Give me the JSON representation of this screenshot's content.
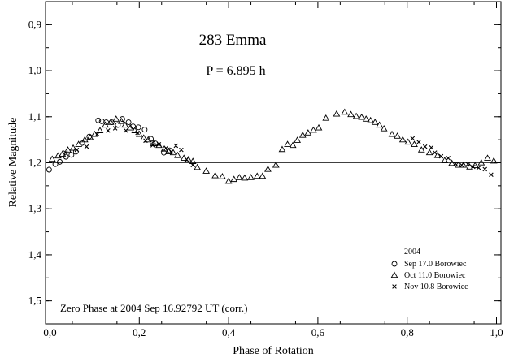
{
  "chart_data": {
    "type": "scatter",
    "title": "283 Emma",
    "subtitle": "P = 6.895 h",
    "xlabel": "Phase of Rotation",
    "ylabel": "Relative Magnitude",
    "xlim": [
      -0.01,
      1.01
    ],
    "ylim": [
      0.85,
      1.55
    ],
    "y_inverted": true,
    "x_ticks": [
      0.0,
      0.2,
      0.4,
      0.6,
      0.8,
      1.0
    ],
    "x_tick_labels": [
      "0,0",
      "0,2",
      "0,4",
      "0,6",
      "0,8",
      "1,0"
    ],
    "y_ticks": [
      0.9,
      1.0,
      1.1,
      1.2,
      1.3,
      1.4,
      1.5
    ],
    "y_tick_labels": [
      "0,9",
      "1,0",
      "1,1",
      "1,2",
      "1,3",
      "1,4",
      "1,5"
    ],
    "grid": false,
    "legend_position": "bottom-right",
    "legend_title": "2004",
    "annotation": "Zero Phase at 2004 Sep 16.92792 UT (corr.)",
    "reference_line_y": 1.2,
    "series": [
      {
        "name": "Sep 17.0 Borowiec",
        "marker": "circle",
        "x": [
          -0.002,
          0.012,
          0.022,
          0.036,
          0.048,
          0.058,
          0.072,
          0.088,
          0.108,
          0.116,
          0.126,
          0.138,
          0.152,
          0.162,
          0.176,
          0.186,
          0.198,
          0.212,
          0.226,
          0.236,
          0.255,
          0.268
        ],
        "y": [
          1.215,
          1.203,
          1.198,
          1.187,
          1.183,
          1.176,
          1.157,
          1.143,
          1.108,
          1.11,
          1.112,
          1.112,
          1.118,
          1.105,
          1.112,
          1.121,
          1.123,
          1.128,
          1.148,
          1.158,
          1.178,
          1.173
        ]
      },
      {
        "name": "Oct 11.0 Borowiec",
        "marker": "triangle",
        "x": [
          0.005,
          0.018,
          0.028,
          0.04,
          0.052,
          0.064,
          0.078,
          0.09,
          0.1,
          0.112,
          0.124,
          0.136,
          0.148,
          0.16,
          0.168,
          0.18,
          0.19,
          0.2,
          0.21,
          0.22,
          0.232,
          0.244,
          0.256,
          0.266,
          0.276,
          0.286,
          0.3,
          0.31,
          0.32,
          0.33,
          0.35,
          0.37,
          0.386,
          0.4,
          0.412,
          0.424,
          0.436,
          0.45,
          0.464,
          0.476,
          0.488,
          0.506,
          0.52,
          0.532,
          0.544,
          0.554,
          0.566,
          0.578,
          0.59,
          0.602,
          0.618,
          0.642,
          0.66,
          0.674,
          0.686,
          0.698,
          0.708,
          0.718,
          0.728,
          0.738,
          0.748,
          0.766,
          0.778,
          0.79,
          0.802,
          0.816,
          0.832,
          0.85,
          0.868,
          0.884,
          0.9,
          0.914,
          0.926,
          0.94,
          0.952,
          0.966,
          0.98,
          0.994
        ],
        "y": [
          1.192,
          1.185,
          1.181,
          1.172,
          1.168,
          1.16,
          1.15,
          1.145,
          1.138,
          1.13,
          1.118,
          1.112,
          1.105,
          1.11,
          1.118,
          1.124,
          1.13,
          1.138,
          1.146,
          1.15,
          1.158,
          1.162,
          1.17,
          1.176,
          1.178,
          1.184,
          1.19,
          1.193,
          1.197,
          1.21,
          1.218,
          1.228,
          1.23,
          1.24,
          1.236,
          1.232,
          1.233,
          1.232,
          1.229,
          1.229,
          1.214,
          1.205,
          1.171,
          1.16,
          1.162,
          1.151,
          1.14,
          1.135,
          1.129,
          1.124,
          1.103,
          1.094,
          1.09,
          1.095,
          1.099,
          1.101,
          1.105,
          1.108,
          1.112,
          1.118,
          1.126,
          1.138,
          1.142,
          1.15,
          1.155,
          1.16,
          1.172,
          1.178,
          1.184,
          1.195,
          1.201,
          1.205,
          1.205,
          1.209,
          1.206,
          1.2,
          1.19,
          1.196
        ]
      },
      {
        "name": "Nov 10.8 Borowiec",
        "marker": "cross",
        "x": [
          0.035,
          0.06,
          0.082,
          0.106,
          0.13,
          0.146,
          0.17,
          0.196,
          0.214,
          0.23,
          0.244,
          0.26,
          0.272,
          0.282,
          0.294,
          0.306,
          0.32,
          0.812,
          0.826,
          0.84,
          0.854,
          0.862,
          0.876,
          0.892,
          0.908,
          0.922,
          0.936,
          0.948,
          0.96,
          0.974,
          0.988
        ],
        "y": [
          1.178,
          1.172,
          1.165,
          1.138,
          1.13,
          1.125,
          1.13,
          1.135,
          1.152,
          1.162,
          1.16,
          1.168,
          1.176,
          1.163,
          1.172,
          1.193,
          1.205,
          1.147,
          1.155,
          1.165,
          1.167,
          1.178,
          1.186,
          1.19,
          1.202,
          1.205,
          1.203,
          1.209,
          1.211,
          1.214,
          1.226
        ]
      }
    ]
  }
}
